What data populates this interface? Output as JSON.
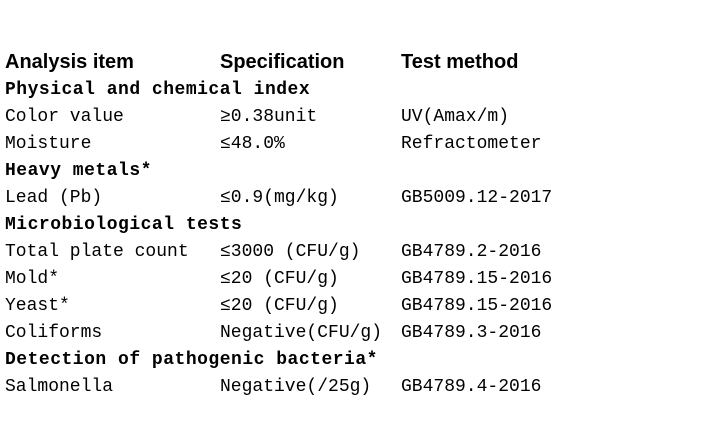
{
  "headers": [
    "Analysis item",
    "Specification",
    "Test method"
  ],
  "sections": [
    {
      "title": "Physical and chemical index",
      "rows": [
        {
          "item": "Color value",
          "spec": "≥0.38unit",
          "method": "UV(Amax/m)"
        },
        {
          "item": "Moisture",
          "spec": "≤48.0%",
          "method": "Refractometer"
        }
      ]
    },
    {
      "title": "Heavy metals*",
      "rows": [
        {
          "item": "Lead (Pb)",
          "spec": "≤0.9(mg/kg)",
          "method": "GB5009.12-2017"
        }
      ]
    },
    {
      "title": "Microbiological tests",
      "rows": [
        {
          "item": "Total plate count",
          "spec": "≤3000 (CFU/g)",
          "method": "GB4789.2-2016"
        },
        {
          "item": "Mold*",
          "spec": "≤20 (CFU/g)",
          "method": "GB4789.15-2016"
        },
        {
          "item": "Yeast*",
          "spec": "≤20 (CFU/g)",
          "method": "GB4789.15-2016"
        },
        {
          "item": "Coliforms",
          "spec": "Negative(CFU/g)",
          "method": "GB4789.3-2016"
        }
      ]
    },
    {
      "title": "Detection of pathogenic bacteria*",
      "rows": [
        {
          "item": "Salmonella",
          "spec": "Negative(/25g)",
          "method": "GB4789.4-2016"
        }
      ]
    }
  ]
}
